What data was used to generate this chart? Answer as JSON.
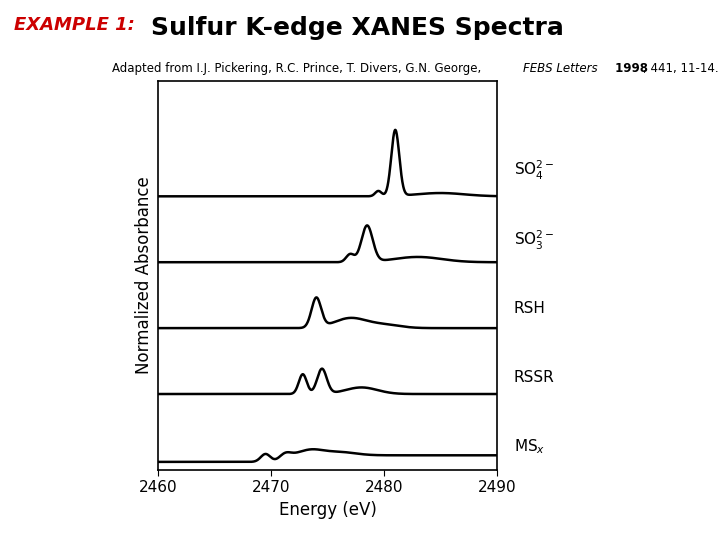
{
  "title": "Sulfur K-edge XANES Spectra",
  "example_label": "EXAMPLE 1:",
  "xlabel": "Energy (eV)",
  "ylabel": "Normalized Absorbance",
  "xmin": 2460,
  "xmax": 2490,
  "offsets": [
    4.0,
    3.0,
    2.0,
    1.0,
    0.0
  ],
  "line_color": "#000000",
  "line_width": 1.8,
  "title_color": "#000000",
  "example_color": "#cc0000",
  "background_color": "#ffffff",
  "label_info": [
    [
      4.45,
      "SO$_4^{2-}$"
    ],
    [
      3.38,
      "SO$_3^{2-}$"
    ],
    [
      2.35,
      "RSH"
    ],
    [
      1.3,
      "RSSR"
    ],
    [
      0.25,
      "MS$_x$"
    ]
  ]
}
